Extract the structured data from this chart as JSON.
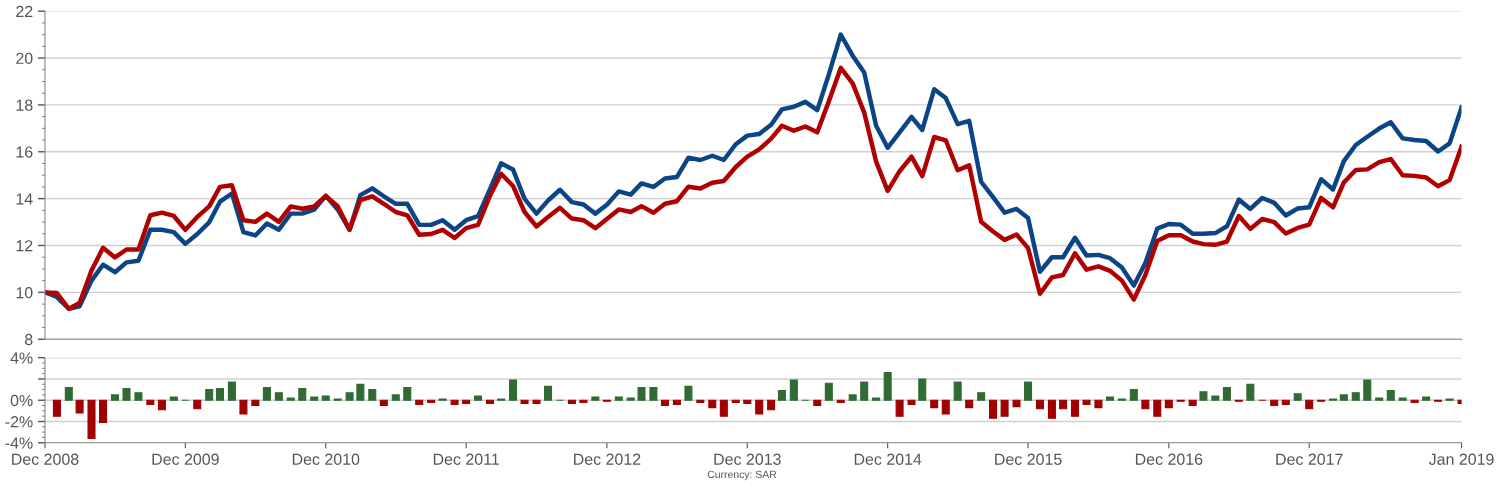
{
  "chart_data": [
    {
      "type": "line",
      "x": [
        "2008-12",
        "2009-01",
        "2009-02",
        "2009-03",
        "2009-04",
        "2009-05",
        "2009-06",
        "2009-07",
        "2009-08",
        "2009-09",
        "2009-10",
        "2009-11",
        "2009-12",
        "2010-01",
        "2010-02",
        "2010-03",
        "2010-04",
        "2010-05",
        "2010-06",
        "2010-07",
        "2010-08",
        "2010-09",
        "2010-10",
        "2010-11",
        "2010-12",
        "2011-01",
        "2011-02",
        "2011-03",
        "2011-04",
        "2011-05",
        "2011-06",
        "2011-07",
        "2011-08",
        "2011-09",
        "2011-10",
        "2011-11",
        "2011-12",
        "2012-01",
        "2012-02",
        "2012-03",
        "2012-04",
        "2012-05",
        "2012-06",
        "2012-07",
        "2012-08",
        "2012-09",
        "2012-10",
        "2012-11",
        "2012-12",
        "2013-01",
        "2013-02",
        "2013-03",
        "2013-04",
        "2013-05",
        "2013-06",
        "2013-07",
        "2013-08",
        "2013-09",
        "2013-10",
        "2013-11",
        "2013-12",
        "2014-01",
        "2014-02",
        "2014-03",
        "2014-04",
        "2014-05",
        "2014-06",
        "2014-07",
        "2014-08",
        "2014-09",
        "2014-10",
        "2014-11",
        "2014-12",
        "2015-01",
        "2015-02",
        "2015-03",
        "2015-04",
        "2015-05",
        "2015-06",
        "2015-07",
        "2015-08",
        "2015-09",
        "2015-10",
        "2015-11",
        "2015-12",
        "2016-01",
        "2016-02",
        "2016-03",
        "2016-04",
        "2016-05",
        "2016-06",
        "2016-07",
        "2016-08",
        "2016-09",
        "2016-10",
        "2016-11",
        "2016-12",
        "2017-01",
        "2017-02",
        "2017-03",
        "2017-04",
        "2017-05",
        "2017-06",
        "2017-07",
        "2017-08",
        "2017-09",
        "2017-10",
        "2017-11",
        "2017-12",
        "2018-01",
        "2018-02",
        "2018-03",
        "2018-04",
        "2018-05",
        "2018-06",
        "2018-07",
        "2018-08",
        "2018-09",
        "2018-10",
        "2018-11",
        "2018-12",
        "2019-01"
      ],
      "series": [
        {
          "color": "#0b4586",
          "values": [
            10.0,
            9.8,
            9.3,
            9.4,
            10.5,
            11.18,
            10.86,
            11.28,
            11.35,
            12.67,
            12.67,
            12.57,
            12.07,
            12.49,
            12.99,
            13.87,
            14.22,
            12.57,
            12.43,
            12.94,
            12.67,
            13.36,
            13.36,
            13.53,
            14.12,
            13.54,
            12.67,
            14.15,
            14.44,
            14.1,
            13.78,
            13.78,
            12.88,
            12.88,
            13.08,
            12.67,
            13.08,
            13.25,
            14.4,
            15.51,
            15.24,
            13.99,
            13.36,
            13.92,
            14.38,
            13.85,
            13.75,
            13.36,
            13.74,
            14.31,
            14.17,
            14.65,
            14.5,
            14.86,
            14.92,
            15.75,
            15.65,
            15.83,
            15.65,
            16.32,
            16.69,
            16.76,
            17.15,
            17.81,
            17.92,
            18.13,
            17.78,
            19.3,
            21.0,
            20.1,
            19.38,
            17.11,
            16.17,
            16.83,
            17.49,
            16.93,
            18.67,
            18.29,
            17.18,
            17.32,
            14.72,
            14.06,
            13.4,
            13.56,
            13.17,
            10.88,
            11.5,
            11.5,
            12.33,
            11.57,
            11.6,
            11.46,
            11.06,
            10.29,
            11.25,
            12.72,
            12.92,
            12.89,
            12.5,
            12.5,
            12.53,
            12.82,
            13.96,
            13.56,
            14.03,
            13.82,
            13.28,
            13.58,
            13.63,
            14.83,
            14.39,
            15.6,
            16.29,
            16.64,
            16.99,
            17.26,
            16.57,
            16.5,
            16.46,
            16.01,
            16.36,
            17.89
          ]
        },
        {
          "color": "#b00000",
          "values": [
            10.0,
            9.97,
            9.3,
            9.55,
            10.93,
            11.9,
            11.49,
            11.83,
            11.83,
            13.29,
            13.4,
            13.26,
            12.67,
            13.22,
            13.67,
            14.5,
            14.57,
            13.08,
            13.01,
            13.36,
            13.01,
            13.67,
            13.57,
            13.67,
            14.12,
            13.68,
            12.67,
            13.94,
            14.1,
            13.78,
            13.43,
            13.29,
            12.46,
            12.49,
            12.67,
            12.32,
            12.74,
            12.88,
            14.12,
            15.06,
            14.54,
            13.43,
            12.81,
            13.22,
            13.61,
            13.15,
            13.08,
            12.74,
            13.13,
            13.54,
            13.43,
            13.68,
            13.4,
            13.78,
            13.89,
            14.51,
            14.43,
            14.68,
            14.75,
            15.35,
            15.79,
            16.1,
            16.56,
            17.11,
            16.9,
            17.08,
            16.83,
            18.15,
            19.58,
            18.92,
            17.67,
            15.58,
            14.33,
            15.17,
            15.79,
            14.96,
            16.63,
            16.49,
            15.21,
            15.42,
            13.01,
            12.6,
            12.24,
            12.47,
            11.89,
            9.94,
            10.64,
            10.74,
            11.67,
            10.97,
            11.11,
            10.92,
            10.5,
            9.69,
            10.74,
            12.19,
            12.44,
            12.44,
            12.17,
            12.06,
            12.03,
            12.17,
            13.26,
            12.71,
            13.13,
            13.0,
            12.51,
            12.75,
            12.89,
            14.03,
            13.63,
            14.69,
            15.22,
            15.25,
            15.56,
            15.69,
            15.0,
            14.97,
            14.9,
            14.53,
            14.79,
            16.22
          ]
        }
      ],
      "xlim": [
        "2008-12",
        "2019-01"
      ],
      "ylim": [
        8,
        22
      ],
      "yticks": [
        8,
        10,
        12,
        14,
        16,
        18,
        20,
        22
      ],
      "tick_labels": "y",
      "grid": "y",
      "line_style": "solid",
      "marker": "none"
    },
    {
      "type": "bar",
      "x": [
        "2009-01",
        "2009-02",
        "2009-03",
        "2009-04",
        "2009-05",
        "2009-06",
        "2009-07",
        "2009-08",
        "2009-09",
        "2009-10",
        "2009-11",
        "2009-12",
        "2010-01",
        "2010-02",
        "2010-03",
        "2010-04",
        "2010-05",
        "2010-06",
        "2010-07",
        "2010-08",
        "2010-09",
        "2010-10",
        "2010-11",
        "2010-12",
        "2011-01",
        "2011-02",
        "2011-03",
        "2011-04",
        "2011-05",
        "2011-06",
        "2011-07",
        "2011-08",
        "2011-09",
        "2011-10",
        "2011-11",
        "2011-12",
        "2012-01",
        "2012-02",
        "2012-03",
        "2012-04",
        "2012-05",
        "2012-06",
        "2012-07",
        "2012-08",
        "2012-09",
        "2012-10",
        "2012-11",
        "2012-12",
        "2013-01",
        "2013-02",
        "2013-03",
        "2013-04",
        "2013-05",
        "2013-06",
        "2013-07",
        "2013-08",
        "2013-09",
        "2013-10",
        "2013-11",
        "2013-12",
        "2014-01",
        "2014-02",
        "2014-03",
        "2014-04",
        "2014-05",
        "2014-06",
        "2014-07",
        "2014-08",
        "2014-09",
        "2014-10",
        "2014-11",
        "2014-12",
        "2015-01",
        "2015-02",
        "2015-03",
        "2015-04",
        "2015-05",
        "2015-06",
        "2015-07",
        "2015-08",
        "2015-09",
        "2015-10",
        "2015-11",
        "2015-12",
        "2016-01",
        "2016-02",
        "2016-03",
        "2016-04",
        "2016-05",
        "2016-06",
        "2016-07",
        "2016-08",
        "2016-09",
        "2016-10",
        "2016-11",
        "2016-12",
        "2017-01",
        "2017-02",
        "2017-03",
        "2017-04",
        "2017-05",
        "2017-06",
        "2017-07",
        "2017-08",
        "2017-09",
        "2017-10",
        "2017-11",
        "2017-12",
        "2018-01",
        "2018-02",
        "2018-03",
        "2018-04",
        "2018-05",
        "2018-06",
        "2018-07",
        "2018-08",
        "2018-09",
        "2018-10",
        "2018-11",
        "2018-12",
        "2019-01"
      ],
      "values": [
        -1.5,
        1.2,
        -1.2,
        -3.6,
        -2.1,
        0.5,
        1.1,
        0.7,
        -0.4,
        -0.9,
        0.3,
        0,
        -0.8,
        1.0,
        1.1,
        1.7,
        -1.3,
        -0.5,
        1.2,
        0.7,
        0.2,
        1.1,
        0.3,
        0.4,
        0.1,
        0.7,
        1.5,
        1.0,
        -0.5,
        0.5,
        1.2,
        -0.4,
        -0.2,
        0.1,
        -0.4,
        -0.3,
        0.4,
        -0.3,
        0.1,
        1.9,
        -0.3,
        -0.3,
        1.3,
        0,
        -0.3,
        -0.2,
        0.3,
        -0.1,
        0.3,
        0.2,
        1.2,
        1.2,
        -0.5,
        -0.4,
        1.3,
        -0.2,
        -0.7,
        -1.5,
        -0.2,
        -0.3,
        -1.3,
        -0.9,
        0.9,
        1.9,
        0,
        -0.5,
        1.6,
        -0.2,
        0.5,
        1.7,
        0.2,
        2.6,
        -1.5,
        -0.4,
        2.0,
        -0.7,
        -1.3,
        1.7,
        -0.7,
        0.7,
        -1.7,
        -1.5,
        -0.6,
        1.7,
        -0.8,
        -1.7,
        -0.8,
        -1.5,
        -0.4,
        -0.7,
        0.3,
        0.1,
        1.0,
        -0.8,
        -1.5,
        -0.7,
        -0.1,
        -0.5,
        0.8,
        0.4,
        1.2,
        -0.1,
        1.5,
        0,
        -0.5,
        -0.4,
        0.6,
        -0.8,
        -0.1,
        0.1,
        0.5,
        0.7,
        1.9,
        0.2,
        0.9,
        0.2,
        -0.2,
        0.3,
        -0.1,
        0.1,
        -0.3
      ],
      "colors": [
        "#a00000",
        "#2f6b33",
        "#a00000",
        "#a00000",
        "#a00000",
        "#2f6b33",
        "#2f6b33",
        "#2f6b33",
        "#a00000",
        "#a00000",
        "#2f6b33",
        "#2f6b33",
        "#a00000",
        "#2f6b33",
        "#2f6b33",
        "#2f6b33",
        "#a00000",
        "#a00000",
        "#2f6b33",
        "#2f6b33",
        "#2f6b33",
        "#2f6b33",
        "#2f6b33",
        "#2f6b33",
        "#2f6b33",
        "#2f6b33",
        "#2f6b33",
        "#2f6b33",
        "#a00000",
        "#2f6b33",
        "#2f6b33",
        "#a00000",
        "#a00000",
        "#2f6b33",
        "#a00000",
        "#a00000",
        "#2f6b33",
        "#a00000",
        "#2f6b33",
        "#2f6b33",
        "#a00000",
        "#a00000",
        "#2f6b33",
        "#2f6b33",
        "#a00000",
        "#a00000",
        "#2f6b33",
        "#a00000",
        "#2f6b33",
        "#2f6b33",
        "#2f6b33",
        "#2f6b33",
        "#a00000",
        "#a00000",
        "#2f6b33",
        "#a00000",
        "#a00000",
        "#a00000",
        "#a00000",
        "#a00000",
        "#a00000",
        "#a00000",
        "#2f6b33",
        "#2f6b33",
        "#2f6b33",
        "#a00000",
        "#2f6b33",
        "#a00000",
        "#2f6b33",
        "#2f6b33",
        "#2f6b33",
        "#2f6b33",
        "#a00000",
        "#a00000",
        "#2f6b33",
        "#a00000",
        "#a00000",
        "#2f6b33",
        "#a00000",
        "#2f6b33",
        "#a00000",
        "#a00000",
        "#a00000",
        "#2f6b33",
        "#a00000",
        "#a00000",
        "#a00000",
        "#a00000",
        "#a00000",
        "#a00000",
        "#2f6b33",
        "#2f6b33",
        "#2f6b33",
        "#a00000",
        "#a00000",
        "#a00000",
        "#a00000",
        "#a00000",
        "#2f6b33",
        "#2f6b33",
        "#2f6b33",
        "#a00000",
        "#2f6b33",
        "#a00000",
        "#a00000",
        "#a00000",
        "#2f6b33",
        "#a00000",
        "#a00000",
        "#2f6b33",
        "#2f6b33",
        "#2f6b33",
        "#2f6b33",
        "#2f6b33",
        "#2f6b33",
        "#2f6b33",
        "#a00000",
        "#2f6b33",
        "#a00000",
        "#2f6b33",
        "#a00000"
      ],
      "xlim": [
        "2008-12",
        "2019-01"
      ],
      "xticks": [
        {
          "value": "2008-12",
          "label": "Dec 2008"
        },
        {
          "value": "2009-12",
          "label": "Dec 2009"
        },
        {
          "value": "2010-12",
          "label": "Dec 2010"
        },
        {
          "value": "2011-12",
          "label": "Dec 2011"
        },
        {
          "value": "2012-12",
          "label": "Dec 2012"
        },
        {
          "value": "2013-12",
          "label": "Dec 2013"
        },
        {
          "value": "2014-12",
          "label": "Dec 2014"
        },
        {
          "value": "2015-12",
          "label": "Dec 2015"
        },
        {
          "value": "2016-12",
          "label": "Dec 2016"
        },
        {
          "value": "2017-12",
          "label": "Dec 2017"
        },
        {
          "value": "2019-01",
          "label": "Jan 2019"
        }
      ],
      "ylim": [
        -4,
        4
      ],
      "yticks": [
        {
          "value": -4,
          "label": "-4%"
        },
        {
          "value": -2,
          "label": "-2%"
        },
        {
          "value": 0,
          "label": "0%"
        },
        {
          "value": 2,
          "label": null
        },
        {
          "value": 4,
          "label": "4%"
        }
      ],
      "grid": "y",
      "annotations": [
        "Currency: SAR"
      ]
    }
  ]
}
